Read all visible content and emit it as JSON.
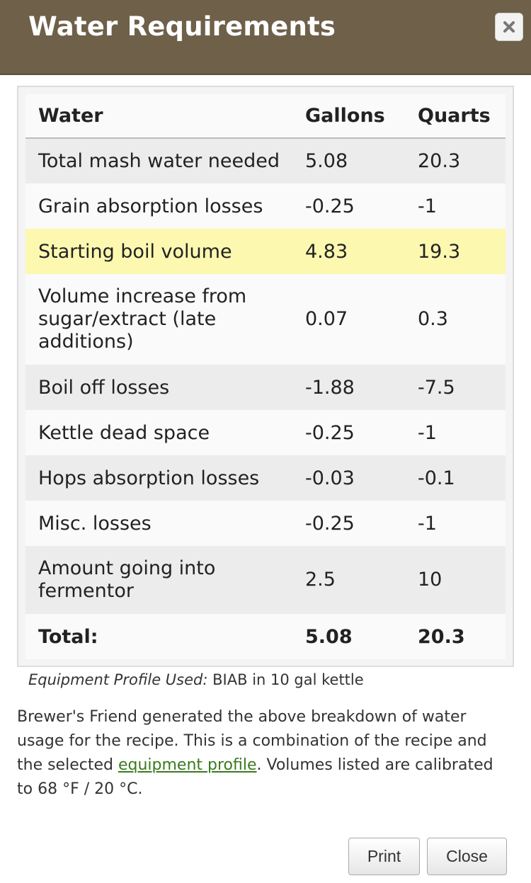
{
  "dialog": {
    "title": "Water Requirements"
  },
  "table": {
    "headers": [
      "Water",
      "Gallons",
      "Quarts"
    ],
    "rows": [
      {
        "label": "Total mash water needed",
        "gallons": "5.08",
        "quarts": "20.3"
      },
      {
        "label": "Grain absorption losses",
        "gallons": "-0.25",
        "quarts": "-1"
      },
      {
        "label": "Starting boil volume",
        "gallons": "4.83",
        "quarts": "19.3"
      },
      {
        "label": "Volume increase from sugar/extract (late additions)",
        "gallons": "0.07",
        "quarts": "0.3"
      },
      {
        "label": "Boil off losses",
        "gallons": "-1.88",
        "quarts": "-7.5"
      },
      {
        "label": "Kettle dead space",
        "gallons": "-0.25",
        "quarts": "-1"
      },
      {
        "label": "Hops absorption losses",
        "gallons": "-0.03",
        "quarts": "-0.1"
      },
      {
        "label": "Misc. losses",
        "gallons": "-0.25",
        "quarts": "-1"
      },
      {
        "label": "Amount going into fermentor",
        "gallons": "2.5",
        "quarts": "10"
      }
    ],
    "total": {
      "label": "Total:",
      "gallons": "5.08",
      "quarts": "20.3"
    }
  },
  "profile": {
    "label": "Equipment Profile Used:",
    "value": "BIAB in 10 gal kettle"
  },
  "description": {
    "before_link": "Brewer's Friend generated the above breakdown of water usage for the recipe. This is a combination of the recipe and the selected ",
    "link_text": "equipment profile",
    "after_link": ". Volumes listed are calibrated to 68 °F / 20 °C."
  },
  "buttons": {
    "print": "Print",
    "close": "Close"
  },
  "colors": {
    "titlebar": "#6e6049",
    "highlight_row": "#fcf8b0",
    "link": "#3a7a1e"
  },
  "icons": {
    "close": "close-icon"
  }
}
